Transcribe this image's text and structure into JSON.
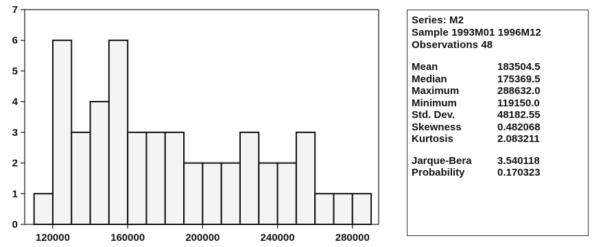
{
  "chart_data": {
    "type": "bar",
    "subtype": "histogram",
    "bin_edges": [
      110000,
      120000,
      130000,
      140000,
      150000,
      160000,
      170000,
      180000,
      190000,
      200000,
      210000,
      220000,
      230000,
      240000,
      250000,
      260000,
      270000,
      280000,
      290000
    ],
    "values": [
      1,
      6,
      3,
      4,
      6,
      3,
      3,
      3,
      2,
      2,
      2,
      3,
      2,
      2,
      3,
      1,
      1,
      1
    ],
    "x_ticks": [
      "120000",
      "160000",
      "200000",
      "240000",
      "280000"
    ],
    "y_ticks": [
      "0",
      "1",
      "2",
      "3",
      "4",
      "5",
      "6",
      "7"
    ],
    "xlim": [
      105000,
      294000
    ],
    "ylim": [
      0,
      7
    ],
    "title": "",
    "xlabel": "",
    "ylabel": "",
    "grid": false,
    "bar_fill": "#f4f4f4",
    "bar_stroke": "#111111"
  },
  "stats": {
    "series": "Series: M2",
    "sample": "Sample 1993M01 1996M12",
    "observations": "Observations 48",
    "rows": [
      {
        "label": "Mean",
        "value": "183504.5"
      },
      {
        "label": "Median",
        "value": "175369.5"
      },
      {
        "label": "Maximum",
        "value": "288632.0"
      },
      {
        "label": "Minimum",
        "value": "119150.0"
      },
      {
        "label": "Std. Dev.",
        "value": "48182.55"
      },
      {
        "label": "Skewness",
        "value": "0.482068"
      },
      {
        "label": "Kurtosis",
        "value": "2.083211"
      }
    ],
    "tests": [
      {
        "label": "Jarque-Bera",
        "value": "3.540118"
      },
      {
        "label": "Probability",
        "value": "0.170323"
      }
    ]
  }
}
